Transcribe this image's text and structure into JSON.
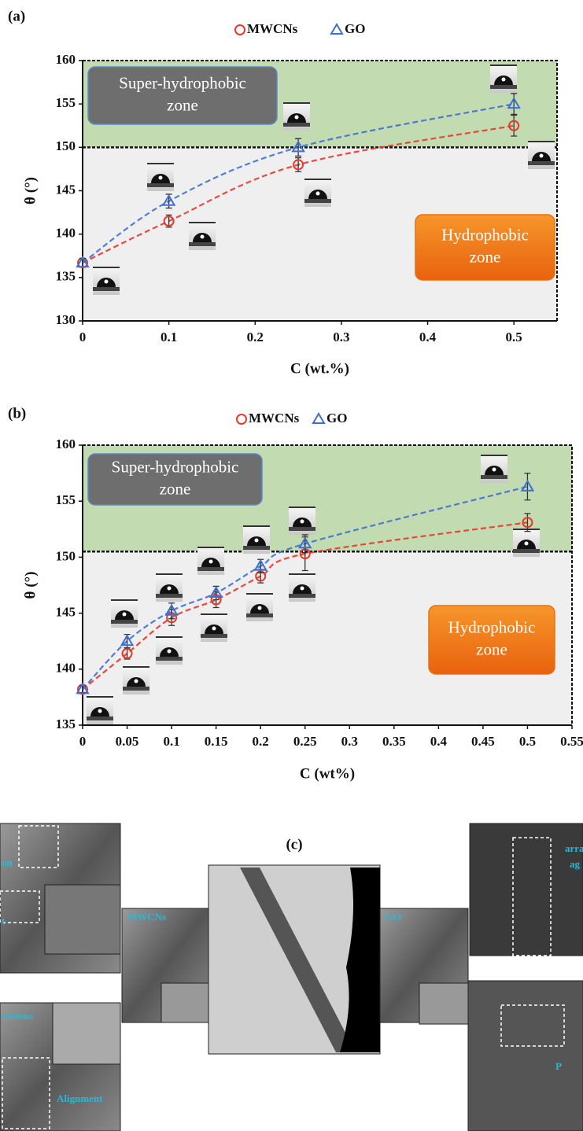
{
  "chart_data": [
    {
      "type": "scatter",
      "panel_label": "(a)",
      "xlabel": "C (wt.%)",
      "ylabel": "θ (°)",
      "xlim": [
        0,
        0.55
      ],
      "xticks": [
        0,
        0.1,
        0.2,
        0.3,
        0.4,
        0.5
      ],
      "ylim": [
        130,
        160
      ],
      "yticks": [
        130,
        135,
        140,
        145,
        150,
        155,
        160
      ],
      "zone_boundary": 150,
      "zones": [
        {
          "label": [
            "Super-hydrophobic",
            "zone"
          ],
          "color": "#c3dbb0"
        },
        {
          "label": [
            "Hydrophobic",
            "zone"
          ],
          "color": "#efefef"
        }
      ],
      "series": [
        {
          "name": "MWCNs",
          "color": "#e5392c",
          "marker": "circle",
          "x": [
            0,
            0.1,
            0.25,
            0.5
          ],
          "values": [
            136.7,
            141.5,
            148,
            152.5
          ],
          "errors": [
            0.5,
            0.7,
            0.8,
            1.2
          ]
        },
        {
          "name": "GO",
          "color": "#3e70d2",
          "marker": "triangle",
          "x": [
            0,
            0.1,
            0.25,
            0.5
          ],
          "values": [
            136.7,
            143.8,
            150,
            155
          ],
          "errors": [
            0.5,
            0.8,
            1.0,
            1.2
          ]
        }
      ]
    },
    {
      "type": "scatter",
      "panel_label": "(b)",
      "xlabel": "C (wt%)",
      "ylabel": "θ (°)",
      "xlim": [
        0,
        0.55
      ],
      "xticks": [
        0,
        0.05,
        0.1,
        0.15,
        0.2,
        0.25,
        0.3,
        0.35,
        0.4,
        0.45,
        0.5,
        0.55
      ],
      "ylim": [
        135,
        160
      ],
      "yticks": [
        135,
        140,
        145,
        150,
        155,
        160
      ],
      "zone_boundary": 150.5,
      "zones": [
        {
          "label": [
            "Super-hydrophobic",
            "zone"
          ],
          "color": "#c3dbb0"
        },
        {
          "label": [
            "Hydrophobic",
            "zone"
          ],
          "color": "#efefef"
        }
      ],
      "series": [
        {
          "name": "MWCNs",
          "color": "#e5392c",
          "marker": "circle",
          "x": [
            0,
            0.05,
            0.1,
            0.15,
            0.2,
            0.25,
            0.5
          ],
          "values": [
            138.2,
            141.4,
            144.6,
            146.2,
            148.3,
            150.3,
            153.1
          ],
          "errors": [
            0.3,
            0.5,
            0.7,
            0.7,
            0.6,
            1.5,
            0.8
          ]
        },
        {
          "name": "GO",
          "color": "#3e70d2",
          "marker": "triangle",
          "x": [
            0,
            0.05,
            0.1,
            0.15,
            0.2,
            0.25,
            0.5
          ],
          "values": [
            138.2,
            142.5,
            145.2,
            146.8,
            149.2,
            151.2,
            156.3
          ],
          "errors": [
            0.3,
            0.6,
            0.7,
            0.6,
            0.6,
            0.8,
            1.2
          ]
        }
      ]
    }
  ],
  "panel_c": {
    "label": "(c)",
    "image_labels": [
      "on",
      "t",
      "rusions",
      "Alignment",
      "MWCNs",
      "GO",
      "arra",
      "ag",
      "P"
    ]
  }
}
